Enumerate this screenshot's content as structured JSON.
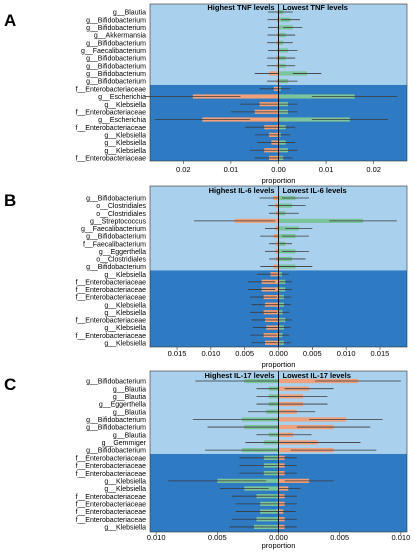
{
  "colors": {
    "top_bg": "#a9d0ec",
    "bottom_bg": "#2e7bc4",
    "bar_orange": "#f0a07a",
    "bar_green": "#7cc49b",
    "bar_purple": "#9b86c7",
    "bar_dark_orange": "#e8905e",
    "err": "#3a3a3a",
    "center_line": "#111111"
  },
  "chart_data": [
    {
      "type": "bar",
      "panel_label": "A",
      "orientation": "horizontal-diverging",
      "left_title": "Highest TNF levels",
      "right_title": "Lowest TNF levels",
      "xlabel": "proportion",
      "xlim": [
        -0.027,
        0.027
      ],
      "xticks": [
        -0.02,
        -0.01,
        0.0,
        0.01,
        0.02
      ],
      "xtick_labels": [
        "0.02",
        "0.01",
        "0.00",
        "0.01",
        "0.02"
      ],
      "top_group_count": 10,
      "categories": [
        "g__Blautia",
        "g__Bifidobacterium",
        "g__Bifidobacterium",
        "g__Akkermansia",
        "g__Bifidobacterium",
        "g__Faecalibacterium",
        "g__Bifidobacterium",
        "g__Bifidobacterium",
        "g__Bifidobacterium",
        "g__Bifidobacterium",
        "f__Enterobacteriaceae",
        "g__Escherichia",
        "g__Klebsiella",
        "f__Enterobacteriaceae",
        "g__Escherichia",
        "f__Enterobacteriaceae",
        "g__Klebsiella",
        "g__Klebsiella",
        "g__Klebsiella",
        "f__Enterobacteriaceae"
      ],
      "series": [
        {
          "name": "Highest TNF levels",
          "values": [
            0.0002,
            0.0003,
            0.0002,
            0.0003,
            0.0004,
            0.0002,
            0.0004,
            0.0004,
            0.002,
            0.0004,
            0.001,
            0.018,
            0.004,
            0.005,
            0.016,
            0.003,
            0.002,
            0.0015,
            0.003,
            0.002
          ],
          "errors": [
            0.002,
            0.002,
            0.002,
            0.002,
            0.002,
            0.002,
            0.002,
            0.002,
            0.003,
            0.002,
            0.003,
            0.01,
            0.004,
            0.005,
            0.01,
            0.004,
            0.003,
            0.003,
            0.003,
            0.003
          ]
        },
        {
          "name": "Lowest TNF levels",
          "values": [
            0.001,
            0.0025,
            0.003,
            0.0015,
            0.001,
            0.002,
            0.0015,
            0.0015,
            0.006,
            0.002,
            0.0005,
            0.016,
            0.002,
            0.002,
            0.015,
            0.0015,
            0.0005,
            0.0015,
            0.002,
            0.001
          ],
          "errors": [
            0.002,
            0.002,
            0.002,
            0.002,
            0.002,
            0.002,
            0.002,
            0.002,
            0.003,
            0.002,
            0.002,
            0.009,
            0.002,
            0.002,
            0.008,
            0.002,
            0.002,
            0.002,
            0.002,
            0.002
          ]
        }
      ]
    },
    {
      "type": "bar",
      "panel_label": "B",
      "orientation": "horizontal-diverging",
      "left_title": "Highest IL-6 levels",
      "right_title": "Lowest IL-6 levels",
      "xlabel": "proportion",
      "xlim": [
        -0.019,
        0.019
      ],
      "xticks": [
        -0.015,
        -0.01,
        -0.005,
        0.0,
        0.005,
        0.01,
        0.015
      ],
      "xtick_labels": [
        "0.015",
        "0.010",
        "0.005",
        "0.000",
        "0.005",
        "0.010",
        "0.015"
      ],
      "top_group_count": 10,
      "categories": [
        "g__Bifidobacterium",
        "o__Clostridiales",
        "o__Clostridiales",
        "g__Streptococcus",
        "g__Faecalibacterium",
        "g__Bifidobacterium",
        "f__Faecalibacterium",
        "g__Eggerthella",
        "o__Clostridiales",
        "g__Bifidobacterium",
        "g__Klebsiella",
        "f__Enterobacteriaceae",
        "f__Enterobacteriaceae",
        "f__Enterobacteriaceae",
        "g__Klebsiella",
        "g__Klebsiella",
        "f__Enterobacteriaceae",
        "g__Klebsiella",
        "f__Enterobacteriaceae",
        "g__Klebsiella"
      ],
      "series": [
        {
          "name": "Highest IL-6 levels",
          "values": [
            0.0008,
            0.0005,
            0.0004,
            0.0065,
            0.0005,
            0.0007,
            0.0004,
            0.0005,
            0.0004,
            0.0007,
            0.0012,
            0.0025,
            0.0025,
            0.0022,
            0.002,
            0.0022,
            0.002,
            0.0018,
            0.0022,
            0.002
          ],
          "errors": [
            0.002,
            0.001,
            0.001,
            0.006,
            0.0015,
            0.002,
            0.001,
            0.0015,
            0.001,
            0.002,
            0.002,
            0.002,
            0.002,
            0.002,
            0.002,
            0.002,
            0.002,
            0.002,
            0.002,
            0.002
          ]
        },
        {
          "name": "Lowest IL-6 levels",
          "values": [
            0.0025,
            0.002,
            0.001,
            0.0125,
            0.003,
            0.0025,
            0.001,
            0.0025,
            0.002,
            0.0025,
            0.0005,
            0.001,
            0.001,
            0.0008,
            0.0008,
            0.0006,
            0.001,
            0.0008,
            0.0006,
            0.0008
          ],
          "errors": [
            0.002,
            0.002,
            0.002,
            0.005,
            0.002,
            0.002,
            0.001,
            0.002,
            0.002,
            0.0025,
            0.001,
            0.001,
            0.001,
            0.001,
            0.001,
            0.001,
            0.001,
            0.001,
            0.001,
            0.001
          ]
        }
      ]
    },
    {
      "type": "bar",
      "panel_label": "C",
      "orientation": "horizontal-diverging",
      "left_title": "Highest IL-17 levels",
      "right_title": "Lowest IL-17 levels",
      "xlabel": "proportion",
      "xlim": [
        -0.0105,
        0.0105
      ],
      "xticks": [
        -0.01,
        -0.005,
        0.0,
        0.005,
        0.01
      ],
      "xtick_labels": [
        "0.010",
        "0.005",
        "0.000",
        "0.005",
        "0.010"
      ],
      "top_group_count": 10,
      "categories": [
        "g__Bifidobacterium",
        "g__Blautia",
        "g__Blautia",
        "g__Eggerthella",
        "g__Blautia",
        "g__Bifidobacterium",
        "g__Bifidobacterium",
        "g__Blautia",
        "g__Gemmiger",
        "g__Bifidobacterium",
        "f__Enterobacteriaceae",
        "f__Enterobacteriaceae",
        "f__Enterobacteriaceae",
        "g__Klebsiella",
        "g__Klebsiella",
        "f__Enterobacteriaceae",
        "f__Enterobacteriaceae",
        "f__Enterobacteriaceae",
        "f__Enterobacteriaceae",
        "g__Klebsiella"
      ],
      "series": [
        {
          "name": "Highest IL-17 levels",
          "values": [
            0.0028,
            0.0008,
            0.0008,
            0.0008,
            0.001,
            0.003,
            0.0028,
            0.0008,
            0.0012,
            0.003,
            0.0012,
            0.0012,
            0.0012,
            0.005,
            0.0028,
            0.0018,
            0.0015,
            0.0015,
            0.0018,
            0.002
          ],
          "errors": [
            0.004,
            0.001,
            0.001,
            0.001,
            0.0015,
            0.004,
            0.003,
            0.001,
            0.0015,
            0.003,
            0.002,
            0.002,
            0.002,
            0.004,
            0.002,
            0.002,
            0.002,
            0.002,
            0.002,
            0.002
          ]
        },
        {
          "name": "Lowest IL-17 levels",
          "values": [
            0.0065,
            0.0025,
            0.002,
            0.002,
            0.0015,
            0.0055,
            0.0045,
            0.0012,
            0.0032,
            0.0045,
            0.0005,
            0.0005,
            0.0005,
            0.0025,
            0.0008,
            0.0005,
            0.0005,
            0.0004,
            0.0005,
            0.0005
          ],
          "errors": [
            0.0035,
            0.002,
            0.002,
            0.002,
            0.0015,
            0.003,
            0.003,
            0.0015,
            0.0035,
            0.0035,
            0.001,
            0.001,
            0.001,
            0.002,
            0.001,
            0.001,
            0.001,
            0.001,
            0.001,
            0.001
          ]
        }
      ]
    }
  ]
}
